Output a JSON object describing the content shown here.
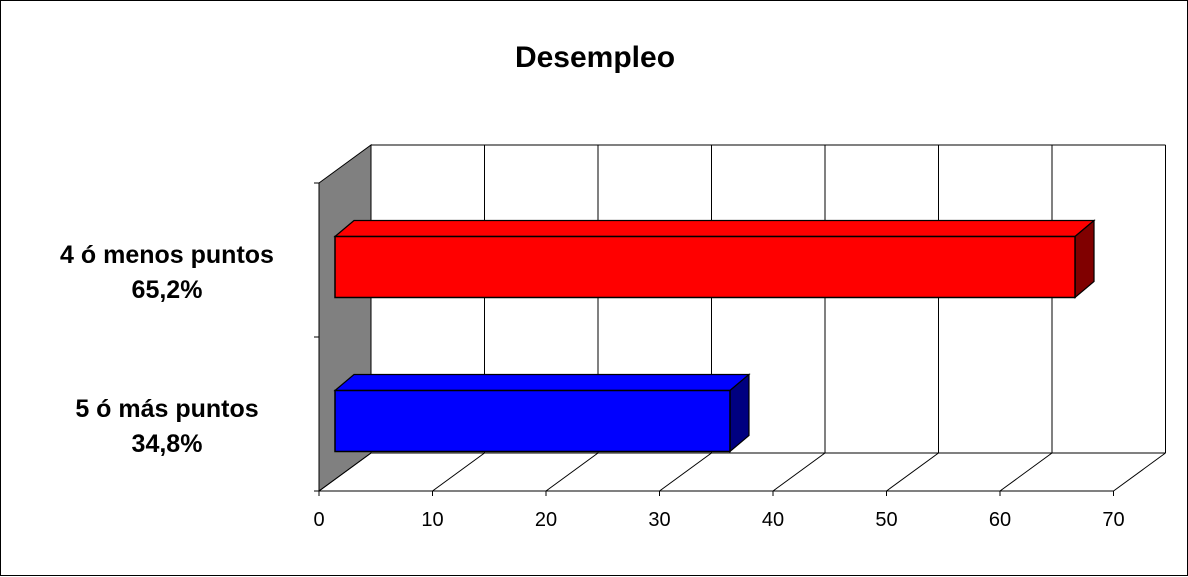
{
  "chart_data": {
    "type": "bar",
    "orientation": "horizontal",
    "style": "3d",
    "title": "Desempleo",
    "xlabel": "",
    "ylabel": "",
    "categories": [
      [
        "4 ó menos puntos",
        "65,2%"
      ],
      [
        "5 ó más puntos",
        "34,8%"
      ]
    ],
    "values": [
      65.2,
      34.8
    ],
    "bar_colors": [
      "#ff0000",
      "#0000ff"
    ],
    "xlim": [
      0,
      70
    ],
    "xticks": [
      0,
      10,
      20,
      30,
      40,
      50,
      60,
      70
    ],
    "xtick_labels": [
      "0",
      "10",
      "20",
      "30",
      "40",
      "50",
      "60",
      "70"
    ],
    "grid": true,
    "legend": "none"
  },
  "colors": {
    "side_wall": "#808080",
    "gridline": "#000000",
    "background": "#ffffff"
  }
}
